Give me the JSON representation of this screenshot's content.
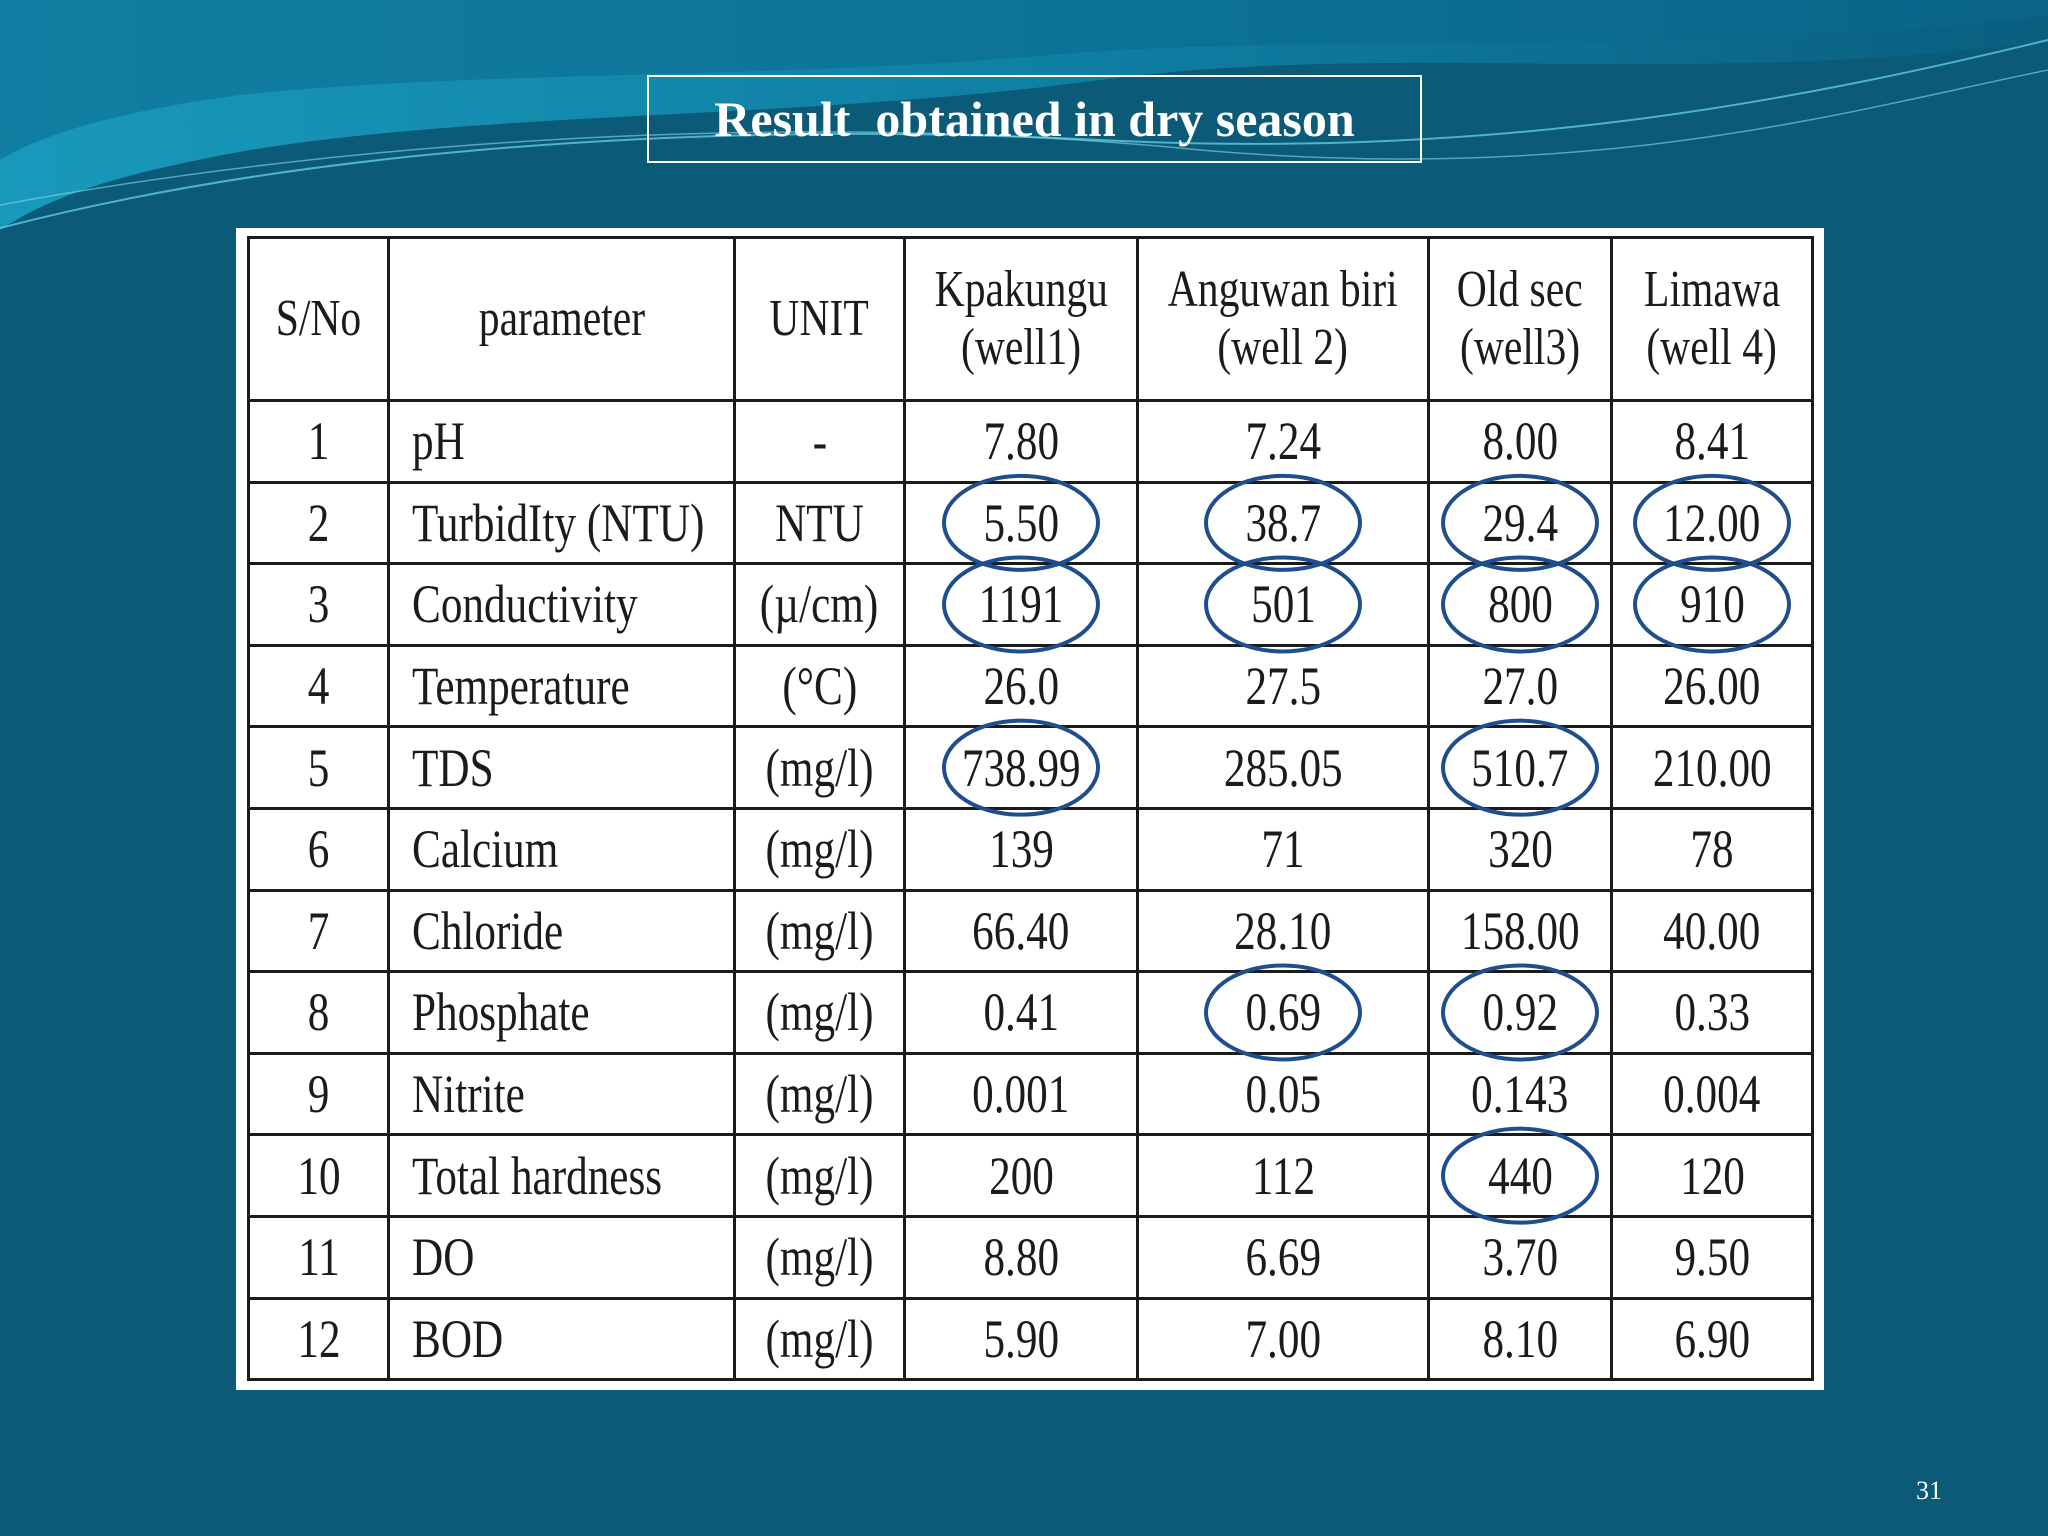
{
  "slide": {
    "title": "Result  obtained in dry season",
    "number": "31"
  },
  "table": {
    "headers": [
      [
        "S/No"
      ],
      [
        "parameter"
      ],
      [
        "UNIT"
      ],
      [
        "Kpakungu",
        "(well1)"
      ],
      [
        "Anguwan biri",
        "(well 2)"
      ],
      [
        "Old sec",
        "(well3)"
      ],
      [
        "Limawa",
        "(well 4)"
      ]
    ],
    "rows": [
      {
        "sno": "1",
        "parameter": "pH",
        "unit": "-",
        "values": [
          "7.80",
          "7.24",
          "8.00",
          "8.41"
        ]
      },
      {
        "sno": "2",
        "parameter": "TurbidIty (NTU)",
        "unit": "NTU",
        "values": [
          "5.50",
          "38.7",
          "29.4",
          "12.00"
        ]
      },
      {
        "sno": "3",
        "parameter": "Conductivity",
        "unit": "(µ/cm)",
        "values": [
          "1191",
          "501",
          "800",
          "910"
        ]
      },
      {
        "sno": "4",
        "parameter": "Temperature",
        "unit": "(°C)",
        "values": [
          "26.0",
          "27.5",
          "27.0",
          "26.00"
        ]
      },
      {
        "sno": "5",
        "parameter": "TDS",
        "unit": "(mg/l)",
        "values": [
          "738.99",
          "285.05",
          "510.7",
          "210.00"
        ]
      },
      {
        "sno": "6",
        "parameter": "Calcium",
        "unit": "(mg/l)",
        "values": [
          "139",
          "71",
          "320",
          "78"
        ]
      },
      {
        "sno": "7",
        "parameter": "Chloride",
        "unit": "(mg/l)",
        "values": [
          "66.40",
          "28.10",
          "158.00",
          "40.00"
        ]
      },
      {
        "sno": "8",
        "parameter": "Phosphate",
        "unit": "(mg/l)",
        "values": [
          "0.41",
          "0.69",
          "0.92",
          "0.33"
        ]
      },
      {
        "sno": "9",
        "parameter": "Nitrite",
        "unit": "(mg/l)",
        "values": [
          "0.001",
          "0.05",
          "0.143",
          "0.004"
        ]
      },
      {
        "sno": "10",
        "parameter": "Total hardness",
        "unit": "(mg/l)",
        "values": [
          "200",
          "112",
          "440",
          "120"
        ]
      },
      {
        "sno": "11",
        "parameter": "DO",
        "unit": "(mg/l)",
        "values": [
          "8.80",
          "6.69",
          "3.70",
          "9.50"
        ]
      },
      {
        "sno": "12",
        "parameter": "BOD",
        "unit": "(mg/l)",
        "values": [
          "5.90",
          "7.00",
          "8.10",
          "6.90"
        ]
      }
    ],
    "circled": [
      [
        1,
        0
      ],
      [
        1,
        1
      ],
      [
        1,
        2
      ],
      [
        1,
        3
      ],
      [
        2,
        0
      ],
      [
        2,
        1
      ],
      [
        2,
        2
      ],
      [
        2,
        3
      ],
      [
        4,
        0
      ],
      [
        4,
        2
      ],
      [
        7,
        1
      ],
      [
        7,
        2
      ],
      [
        9,
        2
      ]
    ]
  },
  "colors": {
    "background": "#0a5a78",
    "wave_light": "#1693b5",
    "circle": "#1f4e8c",
    "text": "#1b1b1b"
  }
}
